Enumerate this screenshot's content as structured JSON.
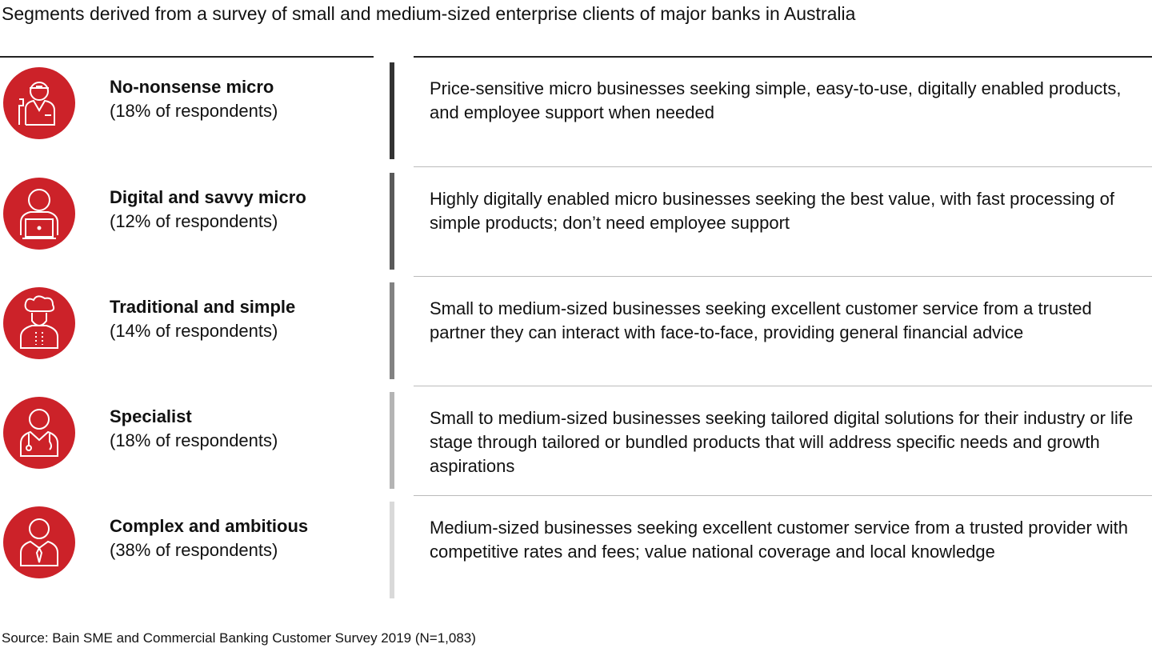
{
  "title": "Segments derived from a survey of small and medium-sized enterprise clients of major banks in Australia",
  "segments": [
    {
      "name": "No-nonsense micro",
      "share": "(18% of respondents)",
      "description": "Price-sensitive micro businesses seeking simple, easy-to-use, digitally enabled products, and employee support when needed",
      "icon": "plumber-icon",
      "bar_color": "#333333"
    },
    {
      "name": "Digital and savvy micro",
      "share": "(12% of respondents)",
      "description": "Highly digitally enabled micro businesses seeking the best value, with fast processing of simple products; don’t need employee support",
      "icon": "person-laptop-icon",
      "bar_color": "#5a5a5a"
    },
    {
      "name": "Traditional and simple",
      "share": "(14% of respondents)",
      "description": "Small to medium-sized businesses seeking excellent customer service from a trusted partner they can interact with face-to-face, providing general financial advice",
      "icon": "chef-icon",
      "bar_color": "#828282"
    },
    {
      "name": "Specialist",
      "share": "(18% of respondents)",
      "description": "Small to medium-sized businesses seeking tailored digital solutions for their industry or life stage through tailored or bundled products that will address specific needs and growth aspirations",
      "icon": "doctor-icon",
      "bar_color": "#b4b4b4"
    },
    {
      "name": "Complex and ambitious",
      "share": "(38% of respondents)",
      "description": "Medium-sized businesses seeking excellent customer service from a trusted provider with competitive rates and fees; value national coverage and local knowledge",
      "icon": "businessperson-icon",
      "bar_color": "#d9d9d9"
    }
  ],
  "accent_color": "#cc2229",
  "source": "Source: Bain SME and Commercial Banking Customer Survey 2019 (N=1,083)"
}
